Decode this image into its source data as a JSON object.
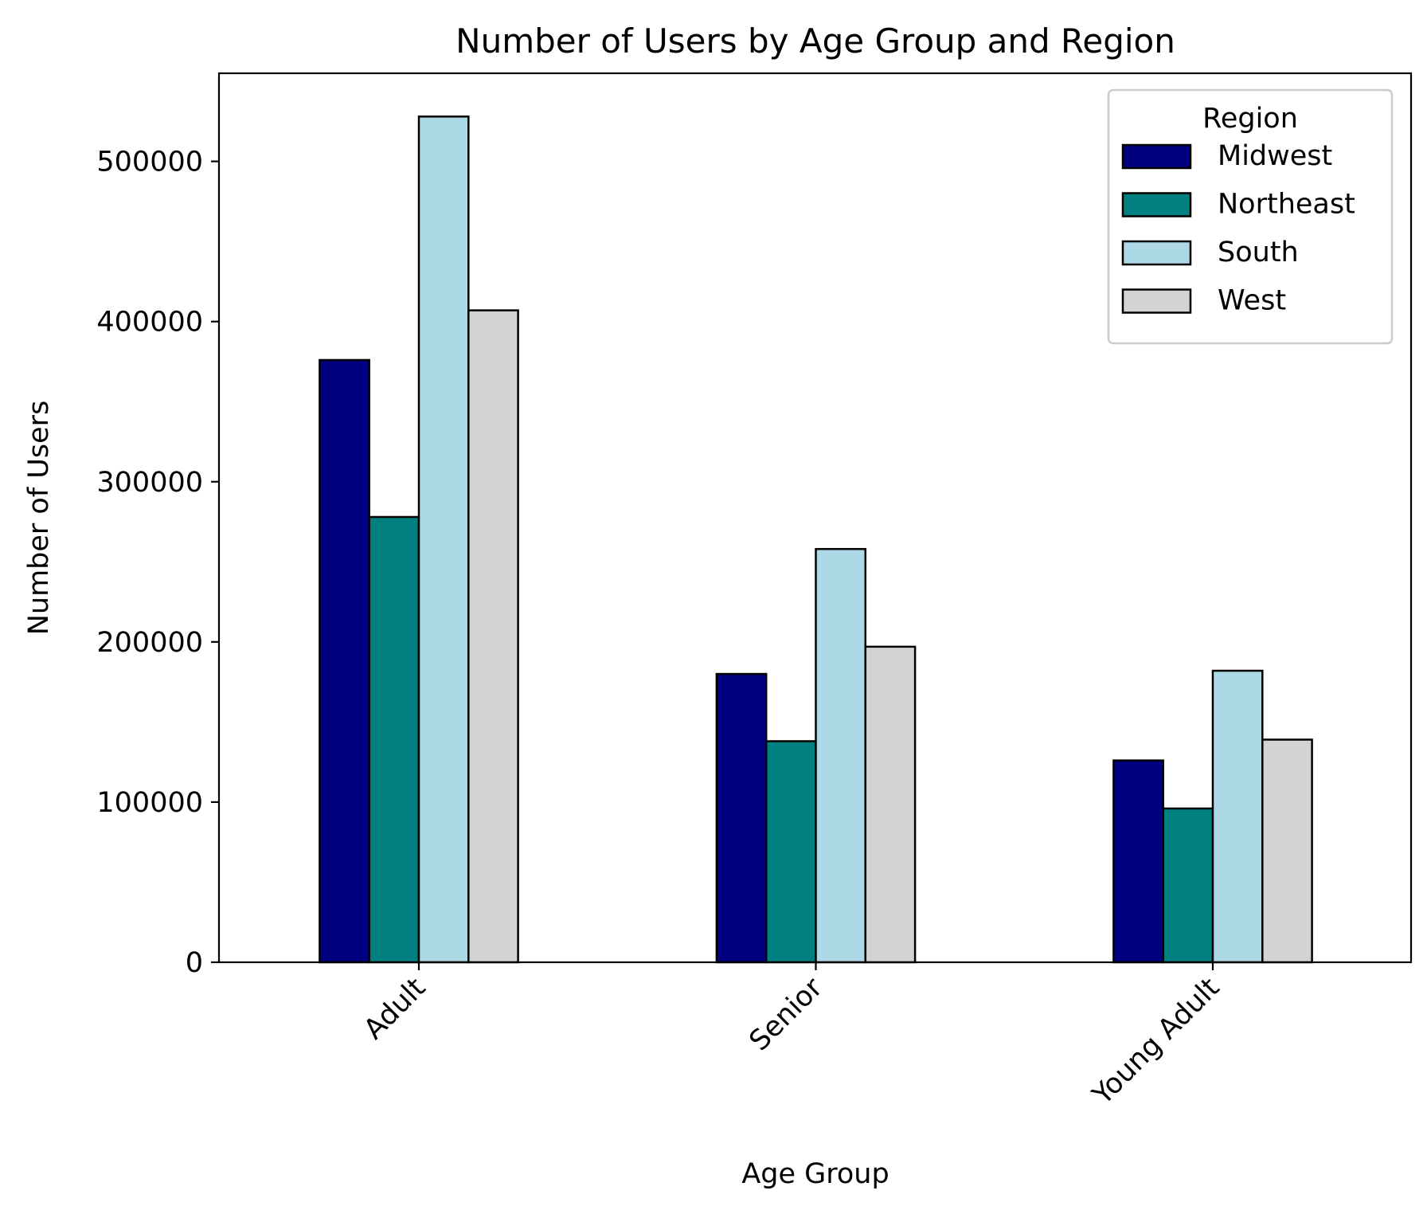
{
  "chart_data": {
    "type": "bar",
    "title": "Number of Users by Age Group and Region",
    "xlabel": "Age Group",
    "ylabel": "Number of Users",
    "categories": [
      "Adult",
      "Senior",
      "Young Adult"
    ],
    "ylim": [
      0,
      555000
    ],
    "yticks": [
      0,
      100000,
      200000,
      300000,
      400000,
      500000
    ],
    "grid": false,
    "legend": {
      "title": "Region",
      "placement": "top-right"
    },
    "series": [
      {
        "name": "Midwest",
        "color": "#000080",
        "values": [
          376000,
          180000,
          126000
        ]
      },
      {
        "name": "Northeast",
        "color": "#008080",
        "values": [
          278000,
          138000,
          96000
        ]
      },
      {
        "name": "South",
        "color": "#add8e6",
        "values": [
          528000,
          258000,
          182000
        ]
      },
      {
        "name": "West",
        "color": "#d3d3d3",
        "values": [
          407000,
          197000,
          139000
        ]
      }
    ]
  }
}
